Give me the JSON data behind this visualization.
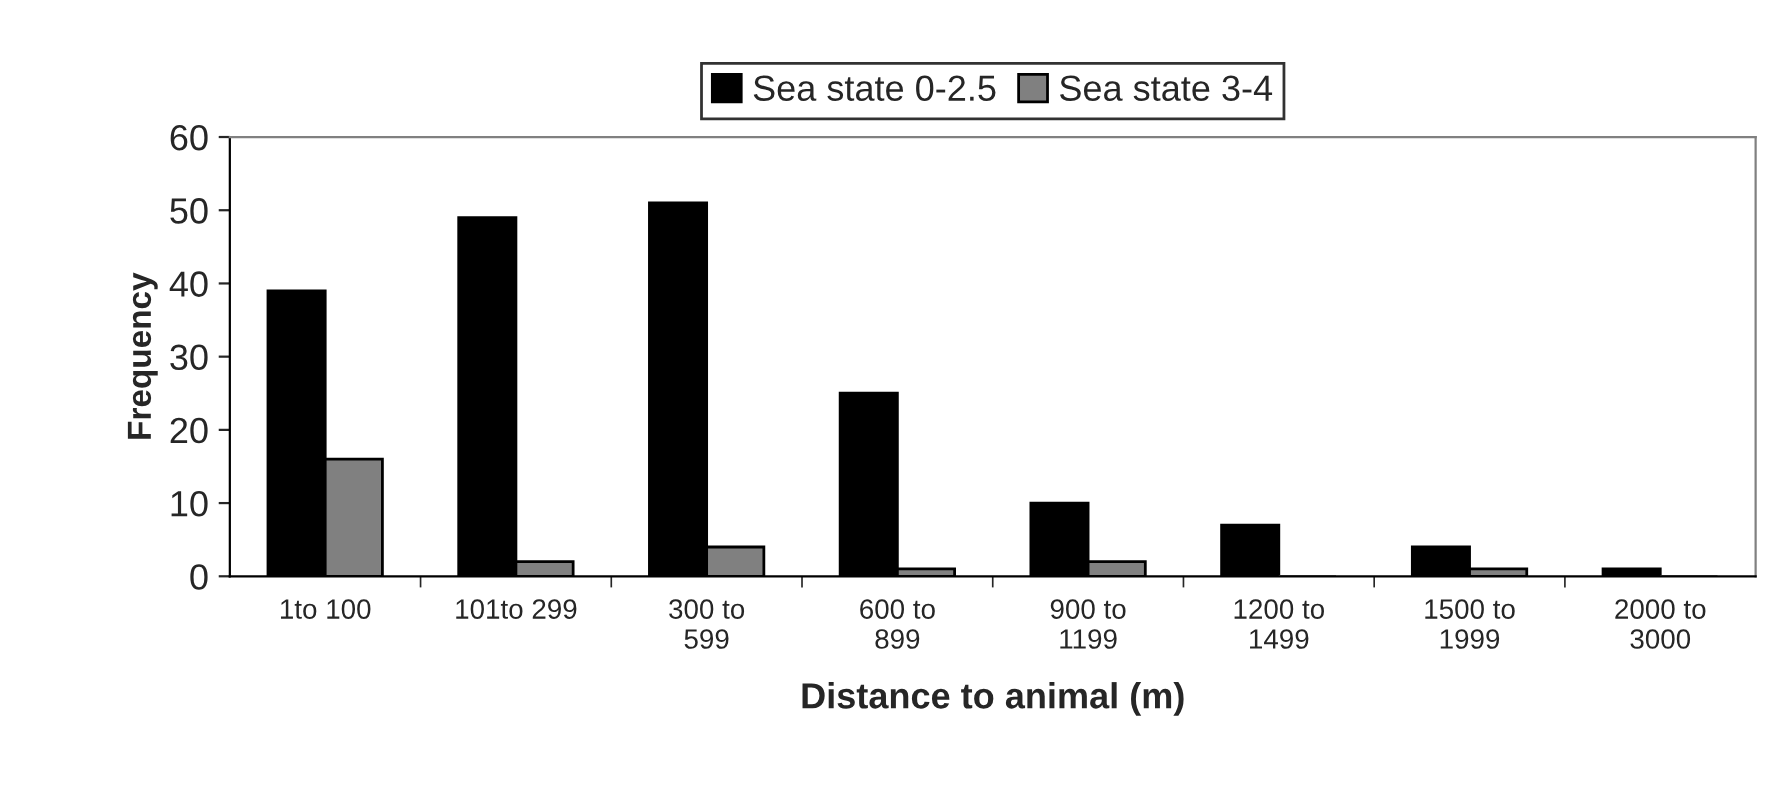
{
  "chart_data": {
    "type": "bar",
    "xlabel": "Distance to animal (m)",
    "ylabel": "Frequency",
    "categories": [
      "1to 100",
      "101to 299",
      "300 to\n599",
      "600 to\n899",
      "900 to\n1199",
      "1200 to\n1499",
      "1500 to\n1999",
      "2000 to\n3000"
    ],
    "series": [
      {
        "name": "Sea state 0-2.5",
        "color": "#000000",
        "values": [
          39,
          49,
          51,
          25,
          10,
          7,
          4,
          1
        ]
      },
      {
        "name": "Sea state 3-4",
        "color": "#808080",
        "values": [
          16,
          2,
          4,
          1,
          2,
          0,
          1,
          0
        ]
      }
    ],
    "ylim": [
      0,
      60
    ],
    "yticks": [
      0,
      10,
      20,
      30,
      40,
      50,
      60
    ],
    "grid": false,
    "legend": "top"
  }
}
